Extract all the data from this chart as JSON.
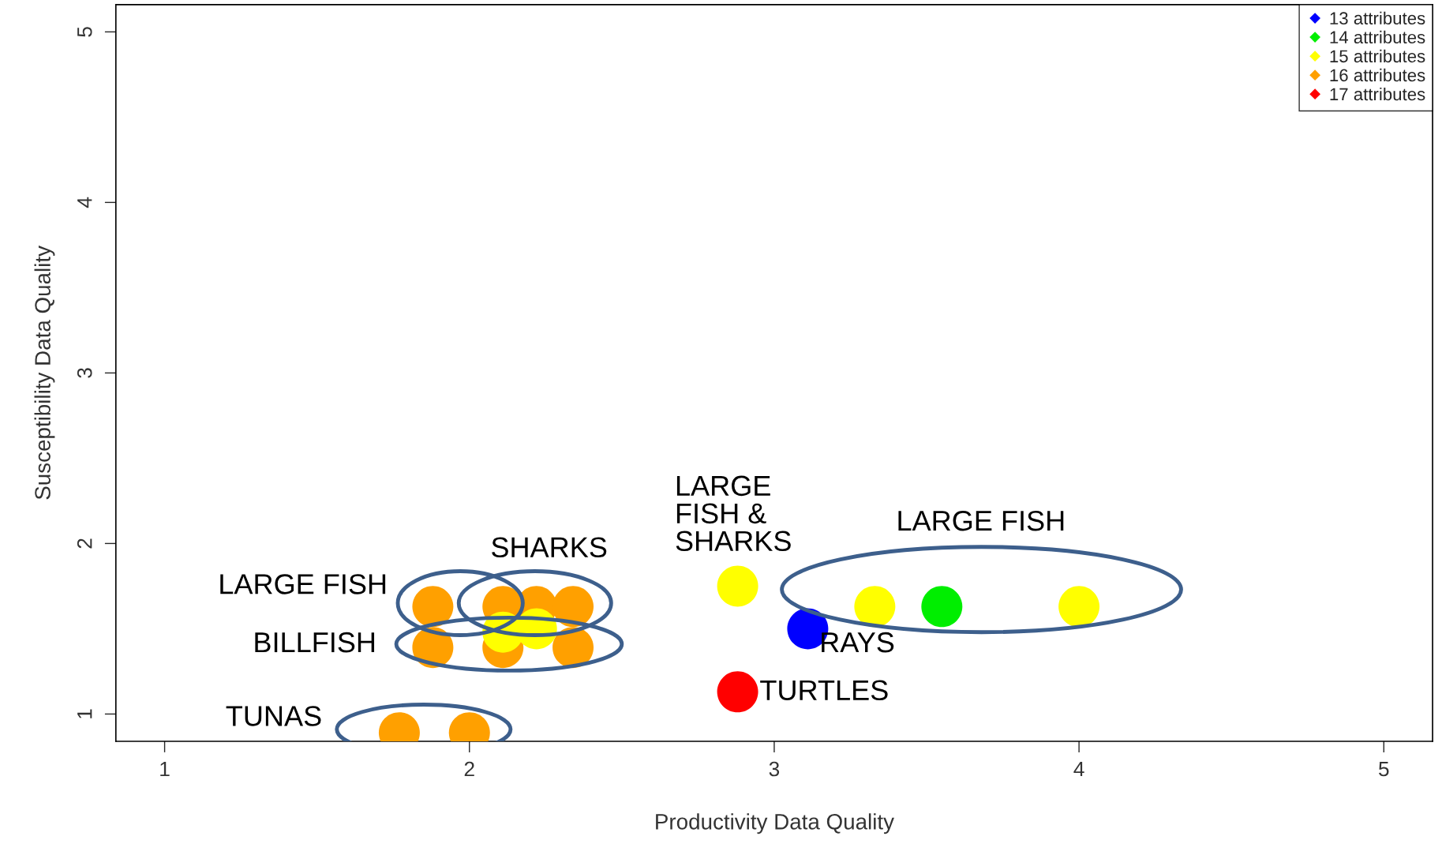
{
  "chart_data": {
    "type": "scatter",
    "xlabel": "Productivity Data Quality",
    "ylabel": "Susceptibility Data Quality",
    "xlim": [
      0.84,
      5.16
    ],
    "ylim": [
      0.84,
      5.16
    ],
    "xticks": [
      1,
      2,
      3,
      4,
      5
    ],
    "yticks": [
      1,
      2,
      3,
      4,
      5
    ],
    "grid": false,
    "legend": "top right",
    "marker": "circle",
    "series": [
      {
        "name": "13 attributes",
        "color": "#0000ff",
        "x": [
          3.11
        ],
        "values": [
          1.5
        ]
      },
      {
        "name": "14 attributes",
        "color": "#00ee00",
        "x": [
          3.55
        ],
        "values": [
          1.63
        ]
      },
      {
        "name": "15 attributes",
        "color": "#ffff00",
        "x": [
          2.11,
          2.22,
          2.88,
          3.33,
          4.0
        ],
        "values": [
          1.48,
          1.5,
          1.75,
          1.63,
          1.63
        ]
      },
      {
        "name": "16 attributes",
        "color": "#ffa000",
        "x": [
          1.88,
          2.11,
          2.22,
          2.34,
          1.88,
          2.11,
          2.34,
          1.77,
          2.0
        ],
        "values": [
          1.63,
          1.63,
          1.63,
          1.63,
          1.39,
          1.39,
          1.39,
          0.89,
          0.89
        ]
      },
      {
        "name": "17 attributes",
        "color": "#ff0000",
        "x": [
          2.88
        ],
        "values": [
          1.13
        ]
      }
    ],
    "annotations": [
      "LARGE FISH",
      "SHARKS",
      "BILLFISH",
      "TUNAS",
      "LARGE\nFISH &\nSHARKS",
      "LARGE FISH",
      "RAYS",
      "TURTLES"
    ]
  }
}
